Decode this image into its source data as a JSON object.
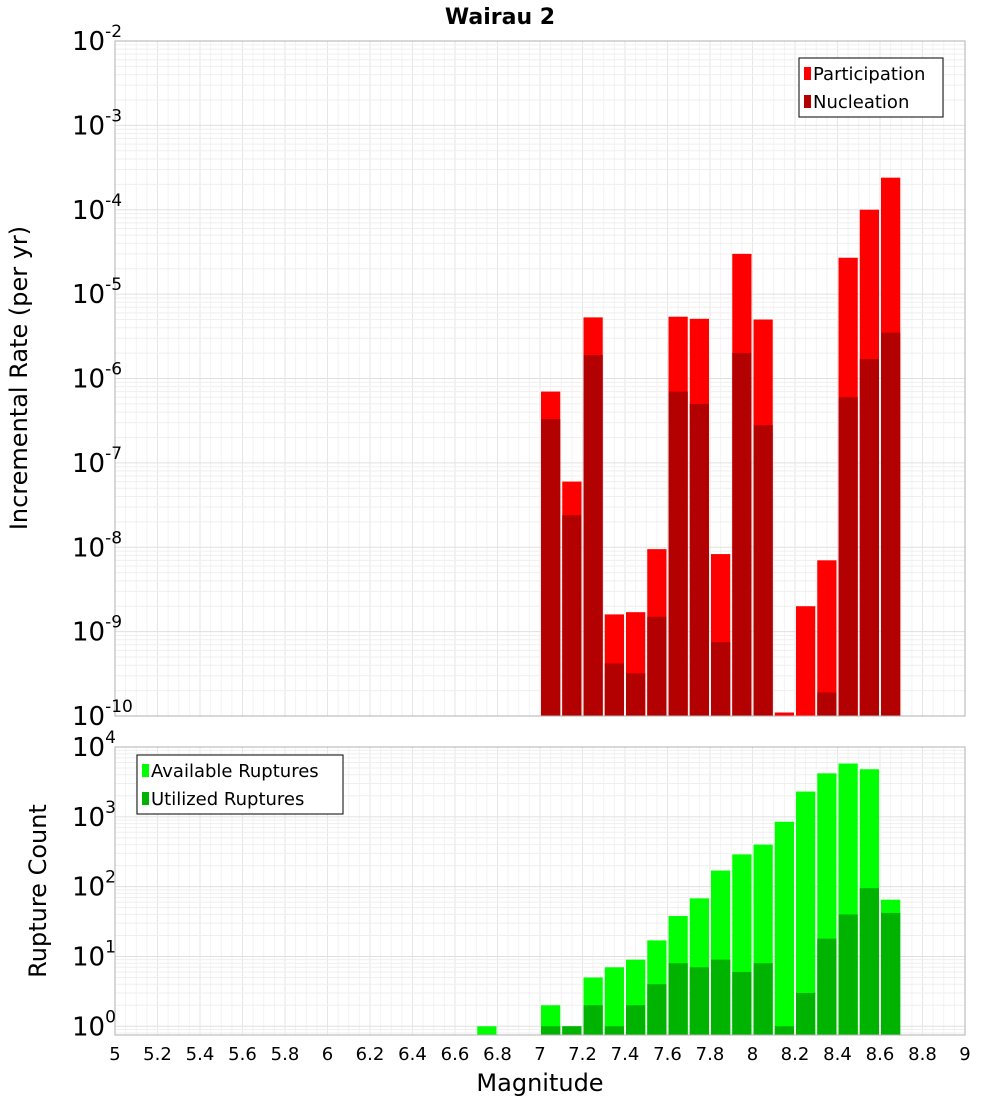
{
  "chart_data": {
    "title": "Wairau 2",
    "xlabel": "Magnitude",
    "xlim": [
      5,
      9
    ],
    "x_ticks": [
      "5",
      "5.2",
      "5.4",
      "5.6",
      "5.8",
      "6",
      "6.2",
      "6.4",
      "6.6",
      "6.8",
      "7",
      "7.2",
      "7.4",
      "7.6",
      "7.8",
      "8",
      "8.2",
      "8.4",
      "8.6",
      "8.8",
      "9"
    ],
    "grid": true,
    "panels": [
      {
        "type": "bar",
        "scale": "log",
        "ylabel": "Incremental Rate (per yr)",
        "ylim": [
          1e-10,
          0.01
        ],
        "y_tick_base": "10",
        "y_tick_exponents": [
          "-10",
          "-9",
          "-8",
          "-7",
          "-6",
          "-5",
          "-4",
          "-3",
          "-2"
        ],
        "legend_position": "top-right",
        "x": [
          7.0,
          7.1,
          7.2,
          7.3,
          7.4,
          7.5,
          7.6,
          7.7,
          7.8,
          7.9,
          8.0,
          8.1,
          8.2,
          8.3,
          8.4,
          8.5,
          8.6
        ],
        "series": [
          {
            "name": "Participation",
            "color": "#ff0000",
            "values": [
              7e-07,
              6e-08,
              5.3e-06,
              1.6e-09,
              1.7e-09,
              9.5e-09,
              5.4e-06,
              5.1e-06,
              8.3e-09,
              3e-05,
              5e-06,
              1.1e-10,
              2e-09,
              7e-09,
              2.7e-05,
              0.0001,
              0.00024
            ]
          },
          {
            "name": "Nucleation",
            "color": "#b30000",
            "values": [
              3.3e-07,
              2.4e-08,
              1.9e-06,
              4.2e-10,
              3.2e-10,
              1.5e-09,
              7e-07,
              5e-07,
              7.5e-10,
              2e-06,
              2.8e-07,
              null,
              null,
              1.9e-10,
              6e-07,
              1.7e-06,
              3.5e-06
            ]
          }
        ]
      },
      {
        "type": "bar",
        "scale": "log",
        "ylabel": "Rupture Count",
        "ylim": [
          0.75,
          10000
        ],
        "y_tick_base": "10",
        "y_tick_exponents": [
          "0",
          "1",
          "2",
          "3",
          "4"
        ],
        "legend_position": "top-left",
        "x": [
          6.7,
          7.0,
          7.1,
          7.2,
          7.3,
          7.4,
          7.5,
          7.6,
          7.7,
          7.8,
          7.9,
          8.0,
          8.1,
          8.2,
          8.3,
          8.4,
          8.5,
          8.6
        ],
        "series": [
          {
            "name": "Available Ruptures",
            "color": "#00ff00",
            "values": [
              1,
              2,
              1,
              5,
              7,
              9,
              17,
              38,
              68,
              170,
              290,
              400,
              850,
              2300,
              4200,
              5800,
              4800,
              65
            ]
          },
          {
            "name": "Utilized Ruptures",
            "color": "#00b300",
            "values": [
              null,
              1,
              1,
              2,
              1,
              2,
              4,
              8,
              7,
              9,
              6,
              8,
              1,
              3,
              18,
              40,
              95,
              42
            ]
          }
        ]
      }
    ]
  }
}
